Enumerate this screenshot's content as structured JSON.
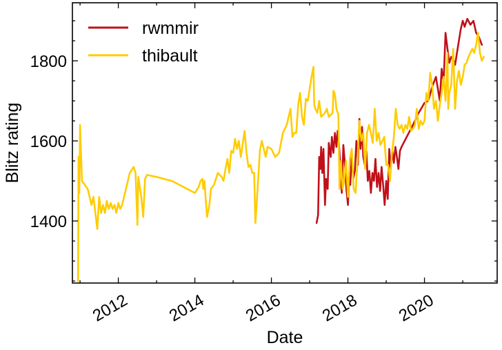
{
  "chart_data": {
    "type": "line",
    "xlabel": "Date",
    "ylabel": "Blitz rating",
    "xlim": [
      2010.8,
      2021.9
    ],
    "ylim": [
      1245,
      1945
    ],
    "xticks": [
      {
        "value": 2012,
        "label": "2012"
      },
      {
        "value": 2014,
        "label": "2014"
      },
      {
        "value": 2016,
        "label": "2016"
      },
      {
        "value": 2018,
        "label": "2018"
      },
      {
        "value": 2020,
        "label": "2020"
      }
    ],
    "yticks": [
      {
        "value": 1400,
        "label": "1400"
      },
      {
        "value": 1600,
        "label": "1600"
      },
      {
        "value": 1800,
        "label": "1800"
      }
    ],
    "legend_position": "top-left",
    "grid": false,
    "series": [
      {
        "name": "rwmmir",
        "color": "#c0101a",
        "points": [
          [
            2017.18,
            1395
          ],
          [
            2017.22,
            1415
          ],
          [
            2017.25,
            1560
          ],
          [
            2017.28,
            1530
          ],
          [
            2017.3,
            1585
          ],
          [
            2017.33,
            1520
          ],
          [
            2017.36,
            1580
          ],
          [
            2017.4,
            1440
          ],
          [
            2017.43,
            1505
          ],
          [
            2017.47,
            1480
          ],
          [
            2017.5,
            1595
          ],
          [
            2017.55,
            1560
          ],
          [
            2017.58,
            1610
          ],
          [
            2017.62,
            1570
          ],
          [
            2017.66,
            1620
          ],
          [
            2017.7,
            1585
          ],
          [
            2017.73,
            1625
          ],
          [
            2017.76,
            1600
          ],
          [
            2017.8,
            1540
          ],
          [
            2017.84,
            1470
          ],
          [
            2017.88,
            1590
          ],
          [
            2017.92,
            1545
          ],
          [
            2017.96,
            1480
          ],
          [
            2018.0,
            1440
          ],
          [
            2018.03,
            1510
          ],
          [
            2018.06,
            1490
          ],
          [
            2018.1,
            1560
          ],
          [
            2018.14,
            1505
          ],
          [
            2018.18,
            1525
          ],
          [
            2018.22,
            1600
          ],
          [
            2018.26,
            1540
          ],
          [
            2018.3,
            1655
          ],
          [
            2018.33,
            1580
          ],
          [
            2018.37,
            1635
          ],
          [
            2018.4,
            1560
          ],
          [
            2018.44,
            1540
          ],
          [
            2018.48,
            1575
          ],
          [
            2018.52,
            1500
          ],
          [
            2018.56,
            1525
          ],
          [
            2018.6,
            1470
          ],
          [
            2018.64,
            1520
          ],
          [
            2018.68,
            1500
          ],
          [
            2018.72,
            1555
          ],
          [
            2018.76,
            1485
          ],
          [
            2018.8,
            1520
          ],
          [
            2018.84,
            1475
          ],
          [
            2018.88,
            1535
          ],
          [
            2018.92,
            1490
          ],
          [
            2018.96,
            1440
          ],
          [
            2019.0,
            1500
          ],
          [
            2019.04,
            1455
          ],
          [
            2019.08,
            1580
          ],
          [
            2019.12,
            1530
          ],
          [
            2019.16,
            1575
          ],
          [
            2019.2,
            1545
          ],
          [
            2019.24,
            1585
          ],
          [
            2019.28,
            1560
          ],
          [
            2019.32,
            1530
          ],
          [
            2019.36,
            1575
          ],
          [
            2019.4,
            1585
          ],
          [
            2019.7,
            1640
          ],
          [
            2019.85,
            1670
          ],
          [
            2020.0,
            1695
          ],
          [
            2020.1,
            1700
          ],
          [
            2020.2,
            1735
          ],
          [
            2020.3,
            1760
          ],
          [
            2020.4,
            1700
          ],
          [
            2020.45,
            1780
          ],
          [
            2020.5,
            1745
          ],
          [
            2020.55,
            1870
          ],
          [
            2020.6,
            1830
          ],
          [
            2020.65,
            1795
          ],
          [
            2020.7,
            1810
          ],
          [
            2020.75,
            1805
          ],
          [
            2020.8,
            1790
          ],
          [
            2020.85,
            1820
          ],
          [
            2020.9,
            1850
          ],
          [
            2020.95,
            1880
          ],
          [
            2021.0,
            1900
          ],
          [
            2021.05,
            1885
          ],
          [
            2021.12,
            1905
          ],
          [
            2021.2,
            1890
          ],
          [
            2021.28,
            1900
          ],
          [
            2021.35,
            1870
          ],
          [
            2021.42,
            1860
          ],
          [
            2021.5,
            1840
          ]
        ]
      },
      {
        "name": "thibault",
        "color": "#ffcc00",
        "points": [
          [
            2010.95,
            1250
          ],
          [
            2010.96,
            1560
          ],
          [
            2010.98,
            1470
          ],
          [
            2011.0,
            1640
          ],
          [
            2011.02,
            1580
          ],
          [
            2011.05,
            1500
          ],
          [
            2011.2,
            1480
          ],
          [
            2011.3,
            1440
          ],
          [
            2011.35,
            1460
          ],
          [
            2011.45,
            1380
          ],
          [
            2011.5,
            1460
          ],
          [
            2011.55,
            1420
          ],
          [
            2011.6,
            1440
          ],
          [
            2011.65,
            1420
          ],
          [
            2011.7,
            1450
          ],
          [
            2011.75,
            1430
          ],
          [
            2011.8,
            1445
          ],
          [
            2011.85,
            1430
          ],
          [
            2011.9,
            1440
          ],
          [
            2011.95,
            1420
          ],
          [
            2012.0,
            1445
          ],
          [
            2012.05,
            1430
          ],
          [
            2012.1,
            1440
          ],
          [
            2012.3,
            1520
          ],
          [
            2012.4,
            1535
          ],
          [
            2012.45,
            1520
          ],
          [
            2012.5,
            1390
          ],
          [
            2012.52,
            1510
          ],
          [
            2012.6,
            1460
          ],
          [
            2012.65,
            1410
          ],
          [
            2012.7,
            1505
          ],
          [
            2012.75,
            1515
          ],
          [
            2013.0,
            1510
          ],
          [
            2013.2,
            1505
          ],
          [
            2013.4,
            1500
          ],
          [
            2013.6,
            1490
          ],
          [
            2013.8,
            1480
          ],
          [
            2014.0,
            1470
          ],
          [
            2014.1,
            1485
          ],
          [
            2014.15,
            1500
          ],
          [
            2014.2,
            1505
          ],
          [
            2014.22,
            1480
          ],
          [
            2014.25,
            1500
          ],
          [
            2014.28,
            1460
          ],
          [
            2014.32,
            1410
          ],
          [
            2014.38,
            1440
          ],
          [
            2014.42,
            1480
          ],
          [
            2014.5,
            1490
          ],
          [
            2014.6,
            1520
          ],
          [
            2014.7,
            1510
          ],
          [
            2014.75,
            1500
          ],
          [
            2014.8,
            1530
          ],
          [
            2014.85,
            1555
          ],
          [
            2014.9,
            1520
          ],
          [
            2014.95,
            1575
          ],
          [
            2015.0,
            1570
          ],
          [
            2015.05,
            1605
          ],
          [
            2015.1,
            1580
          ],
          [
            2015.15,
            1600
          ],
          [
            2015.2,
            1560
          ],
          [
            2015.3,
            1625
          ],
          [
            2015.35,
            1570
          ],
          [
            2015.4,
            1535
          ],
          [
            2015.45,
            1540
          ],
          [
            2015.5,
            1520
          ],
          [
            2015.55,
            1520
          ],
          [
            2015.58,
            1395
          ],
          [
            2015.6,
            1420
          ],
          [
            2015.7,
            1575
          ],
          [
            2015.75,
            1600
          ],
          [
            2015.8,
            1580
          ],
          [
            2015.85,
            1560
          ],
          [
            2015.9,
            1585
          ],
          [
            2016.0,
            1580
          ],
          [
            2016.1,
            1560
          ],
          [
            2016.2,
            1570
          ],
          [
            2016.3,
            1620
          ],
          [
            2016.4,
            1640
          ],
          [
            2016.5,
            1680
          ],
          [
            2016.55,
            1610
          ],
          [
            2016.6,
            1620
          ],
          [
            2016.65,
            1620
          ],
          [
            2016.7,
            1690
          ],
          [
            2016.75,
            1720
          ],
          [
            2016.8,
            1660
          ],
          [
            2016.85,
            1640
          ],
          [
            2016.9,
            1705
          ],
          [
            2016.95,
            1700
          ],
          [
            2017.0,
            1730
          ],
          [
            2017.05,
            1760
          ],
          [
            2017.1,
            1785
          ],
          [
            2017.12,
            1690
          ],
          [
            2017.15,
            1680
          ],
          [
            2017.2,
            1670
          ],
          [
            2017.25,
            1700
          ],
          [
            2017.3,
            1660
          ],
          [
            2017.35,
            1665
          ],
          [
            2017.4,
            1670
          ],
          [
            2017.45,
            1680
          ],
          [
            2017.5,
            1660
          ],
          [
            2017.55,
            1665
          ],
          [
            2017.6,
            1670
          ],
          [
            2017.62,
            1725
          ],
          [
            2017.65,
            1720
          ],
          [
            2017.68,
            1700
          ],
          [
            2017.7,
            1680
          ],
          [
            2017.75,
            1665
          ],
          [
            2017.78,
            1480
          ],
          [
            2017.82,
            1550
          ],
          [
            2017.86,
            1480
          ],
          [
            2017.9,
            1500
          ],
          [
            2017.95,
            1550
          ],
          [
            2018.0,
            1460
          ],
          [
            2018.05,
            1555
          ],
          [
            2018.1,
            1580
          ],
          [
            2018.15,
            1480
          ],
          [
            2018.2,
            1470
          ],
          [
            2018.25,
            1550
          ],
          [
            2018.3,
            1650
          ],
          [
            2018.35,
            1600
          ],
          [
            2018.4,
            1620
          ],
          [
            2018.45,
            1530
          ],
          [
            2018.5,
            1620
          ],
          [
            2018.55,
            1640
          ],
          [
            2018.6,
            1620
          ],
          [
            2018.65,
            1595
          ],
          [
            2018.7,
            1680
          ],
          [
            2018.75,
            1600
          ],
          [
            2018.8,
            1620
          ],
          [
            2018.85,
            1590
          ],
          [
            2018.9,
            1600
          ],
          [
            2018.95,
            1610
          ],
          [
            2019.0,
            1540
          ],
          [
            2019.05,
            1540
          ],
          [
            2019.1,
            1500
          ],
          [
            2019.15,
            1570
          ],
          [
            2019.2,
            1610
          ],
          [
            2019.25,
            1680
          ],
          [
            2019.3,
            1640
          ],
          [
            2019.35,
            1630
          ],
          [
            2019.4,
            1640
          ],
          [
            2019.45,
            1620
          ],
          [
            2019.5,
            1640
          ],
          [
            2019.55,
            1630
          ],
          [
            2019.6,
            1660
          ],
          [
            2019.65,
            1625
          ],
          [
            2019.7,
            1630
          ],
          [
            2019.75,
            1640
          ],
          [
            2019.8,
            1680
          ],
          [
            2019.85,
            1630
          ],
          [
            2019.9,
            1650
          ],
          [
            2019.95,
            1640
          ],
          [
            2020.0,
            1650
          ],
          [
            2020.05,
            1720
          ],
          [
            2020.1,
            1700
          ],
          [
            2020.15,
            1770
          ],
          [
            2020.2,
            1740
          ],
          [
            2020.25,
            1680
          ],
          [
            2020.3,
            1700
          ],
          [
            2020.35,
            1650
          ],
          [
            2020.4,
            1690
          ],
          [
            2020.45,
            1720
          ],
          [
            2020.5,
            1760
          ],
          [
            2020.55,
            1700
          ],
          [
            2020.6,
            1820
          ],
          [
            2020.62,
            1680
          ],
          [
            2020.65,
            1720
          ],
          [
            2020.7,
            1740
          ],
          [
            2020.75,
            1830
          ],
          [
            2020.8,
            1680
          ],
          [
            2020.85,
            1750
          ],
          [
            2020.9,
            1775
          ],
          [
            2020.95,
            1740
          ],
          [
            2021.0,
            1760
          ],
          [
            2021.05,
            1790
          ],
          [
            2021.1,
            1795
          ],
          [
            2021.15,
            1810
          ],
          [
            2021.2,
            1820
          ],
          [
            2021.25,
            1830
          ],
          [
            2021.3,
            1820
          ],
          [
            2021.35,
            1840
          ],
          [
            2021.4,
            1870
          ],
          [
            2021.45,
            1820
          ],
          [
            2021.5,
            1800
          ],
          [
            2021.55,
            1810
          ]
        ]
      }
    ]
  }
}
